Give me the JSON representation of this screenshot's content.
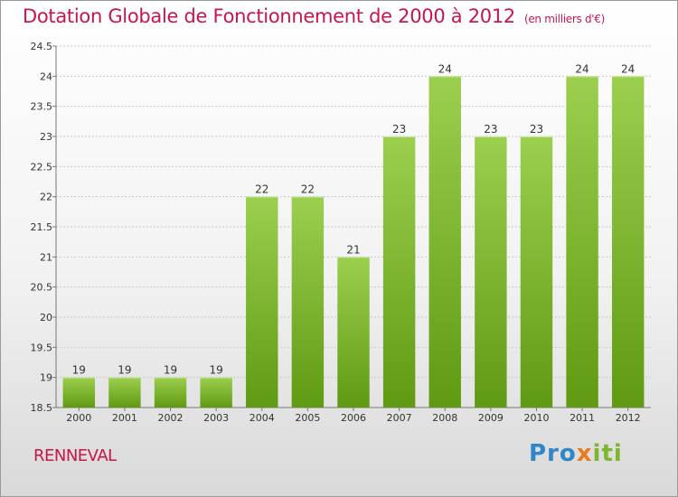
{
  "title": "Dotation Globale de Fonctionnement de 2000 à 2012",
  "subtitle": "(en milliers d'€)",
  "place_name": "RENNEVAL",
  "logo": {
    "part1": "Pro",
    "part2": "x",
    "part3": "iti"
  },
  "colors": {
    "bar_light": "#9ccf4f",
    "bar_dark": "#5f9a12",
    "title": "#c8164b"
  },
  "chart_data": {
    "type": "bar",
    "title": "Dotation Globale de Fonctionnement de 2000 à 2012",
    "subtitle": "(en milliers d'€)",
    "categories": [
      "2000",
      "2001",
      "2002",
      "2003",
      "2004",
      "2005",
      "2006",
      "2007",
      "2008",
      "2009",
      "2010",
      "2011",
      "2012"
    ],
    "values": [
      19,
      19,
      19,
      19,
      22,
      22,
      21,
      23,
      24,
      23,
      23,
      24,
      24
    ],
    "data_labels": [
      "19",
      "19",
      "19",
      "19",
      "22",
      "22",
      "21",
      "23",
      "24",
      "23",
      "23",
      "24",
      "24"
    ],
    "ylim": [
      18.5,
      24.5
    ],
    "yticks": [
      18.5,
      19,
      19.5,
      20,
      20.5,
      21,
      21.5,
      22,
      22.5,
      23,
      23.5,
      24,
      24.5
    ],
    "ytick_labels": [
      "18.5",
      "19",
      "19.5",
      "20",
      "20.5",
      "21",
      "21.5",
      "22",
      "22.5",
      "23",
      "23.5",
      "24",
      "24.5"
    ],
    "grid": true,
    "xlabel": "",
    "ylabel": ""
  }
}
